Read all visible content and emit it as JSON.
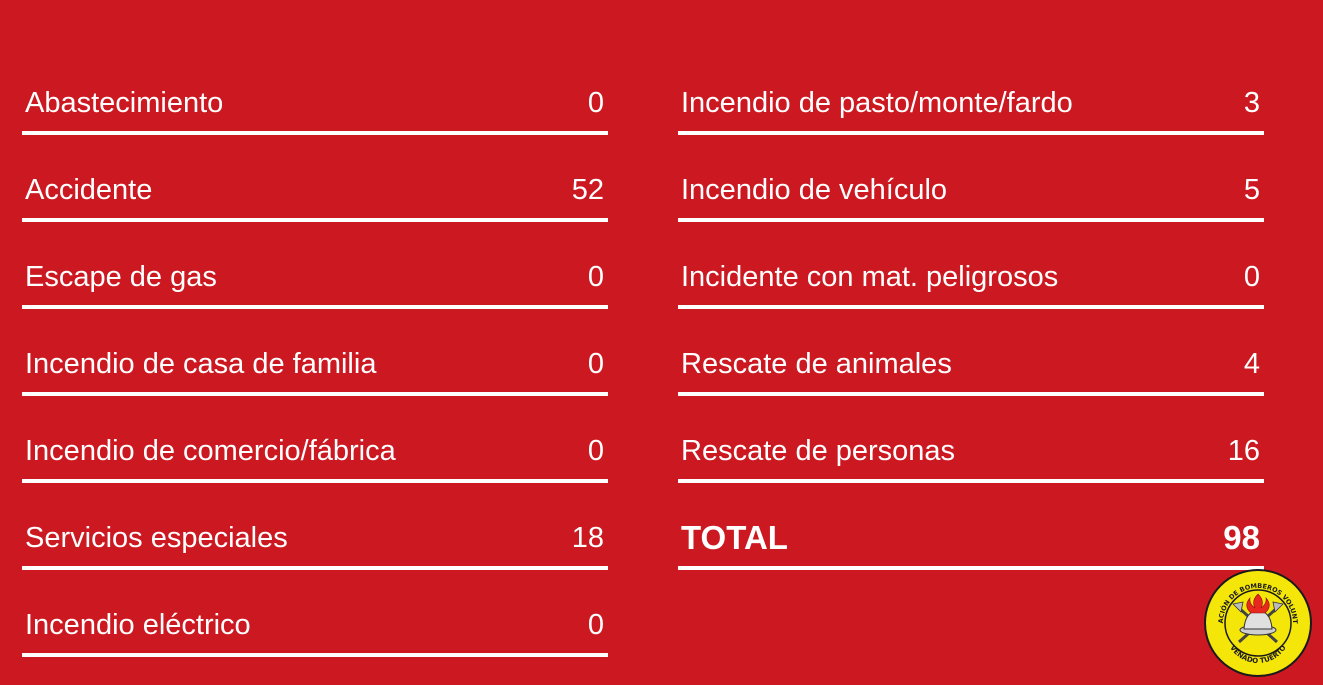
{
  "left_rows": [
    {
      "label": "Abastecimiento",
      "value": "0"
    },
    {
      "label": "Accidente",
      "value": "52"
    },
    {
      "label": "Escape de gas",
      "value": "0"
    },
    {
      "label": "Incendio de casa de familia",
      "value": "0"
    },
    {
      "label": "Incendio de comercio/fábrica",
      "value": "0"
    },
    {
      "label": "Servicios especiales",
      "value": "18"
    },
    {
      "label": "Incendio eléctrico",
      "value": "0"
    }
  ],
  "right_rows": [
    {
      "label": "Incendio de pasto/monte/fardo",
      "value": "3"
    },
    {
      "label": "Incendio de vehículo",
      "value": "5"
    },
    {
      "label": "Incidente con mat. peligrosos",
      "value": "0"
    },
    {
      "label": "Rescate de animales",
      "value": "4"
    },
    {
      "label": "Rescate de personas",
      "value": "16"
    },
    {
      "label": "TOTAL",
      "value": "98"
    }
  ],
  "logo": {
    "top_text": "ASOCIACIÓN DE BOMBEROS VOLUNTARIOS",
    "bottom_text": "VENADO TUERTO",
    "icon": "firefighter-helmet-emblem-icon"
  },
  "colors": {
    "background": "#cc1820",
    "text": "#ffffff",
    "logo_yellow": "#f5e60a"
  }
}
